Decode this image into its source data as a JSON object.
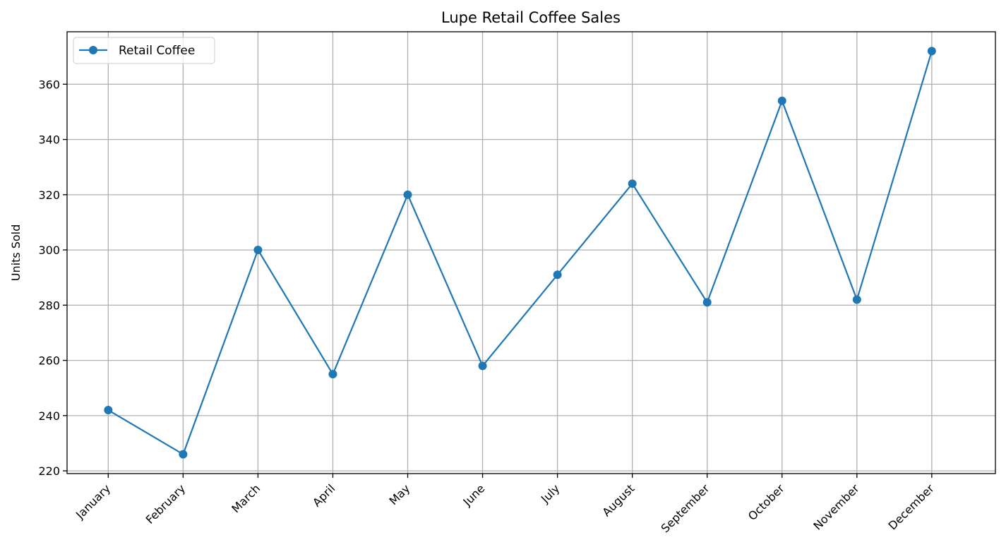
{
  "chart_data": {
    "type": "line",
    "title": "Lupe Retail Coffee Sales",
    "xlabel": "",
    "ylabel": "Units Sold",
    "categories": [
      "January",
      "February",
      "March",
      "April",
      "May",
      "June",
      "July",
      "August",
      "September",
      "October",
      "November",
      "December"
    ],
    "series": [
      {
        "name": "Retail Coffee",
        "values": [
          242,
          226,
          300,
          255,
          320,
          258,
          291,
          324,
          281,
          354,
          282,
          372
        ],
        "color": "#1f77b4",
        "marker": "circle"
      }
    ],
    "yticks": [
      220,
      240,
      260,
      280,
      300,
      320,
      340,
      360
    ],
    "ylim": [
      219,
      379
    ],
    "grid": true,
    "legend_position": "top-left"
  }
}
